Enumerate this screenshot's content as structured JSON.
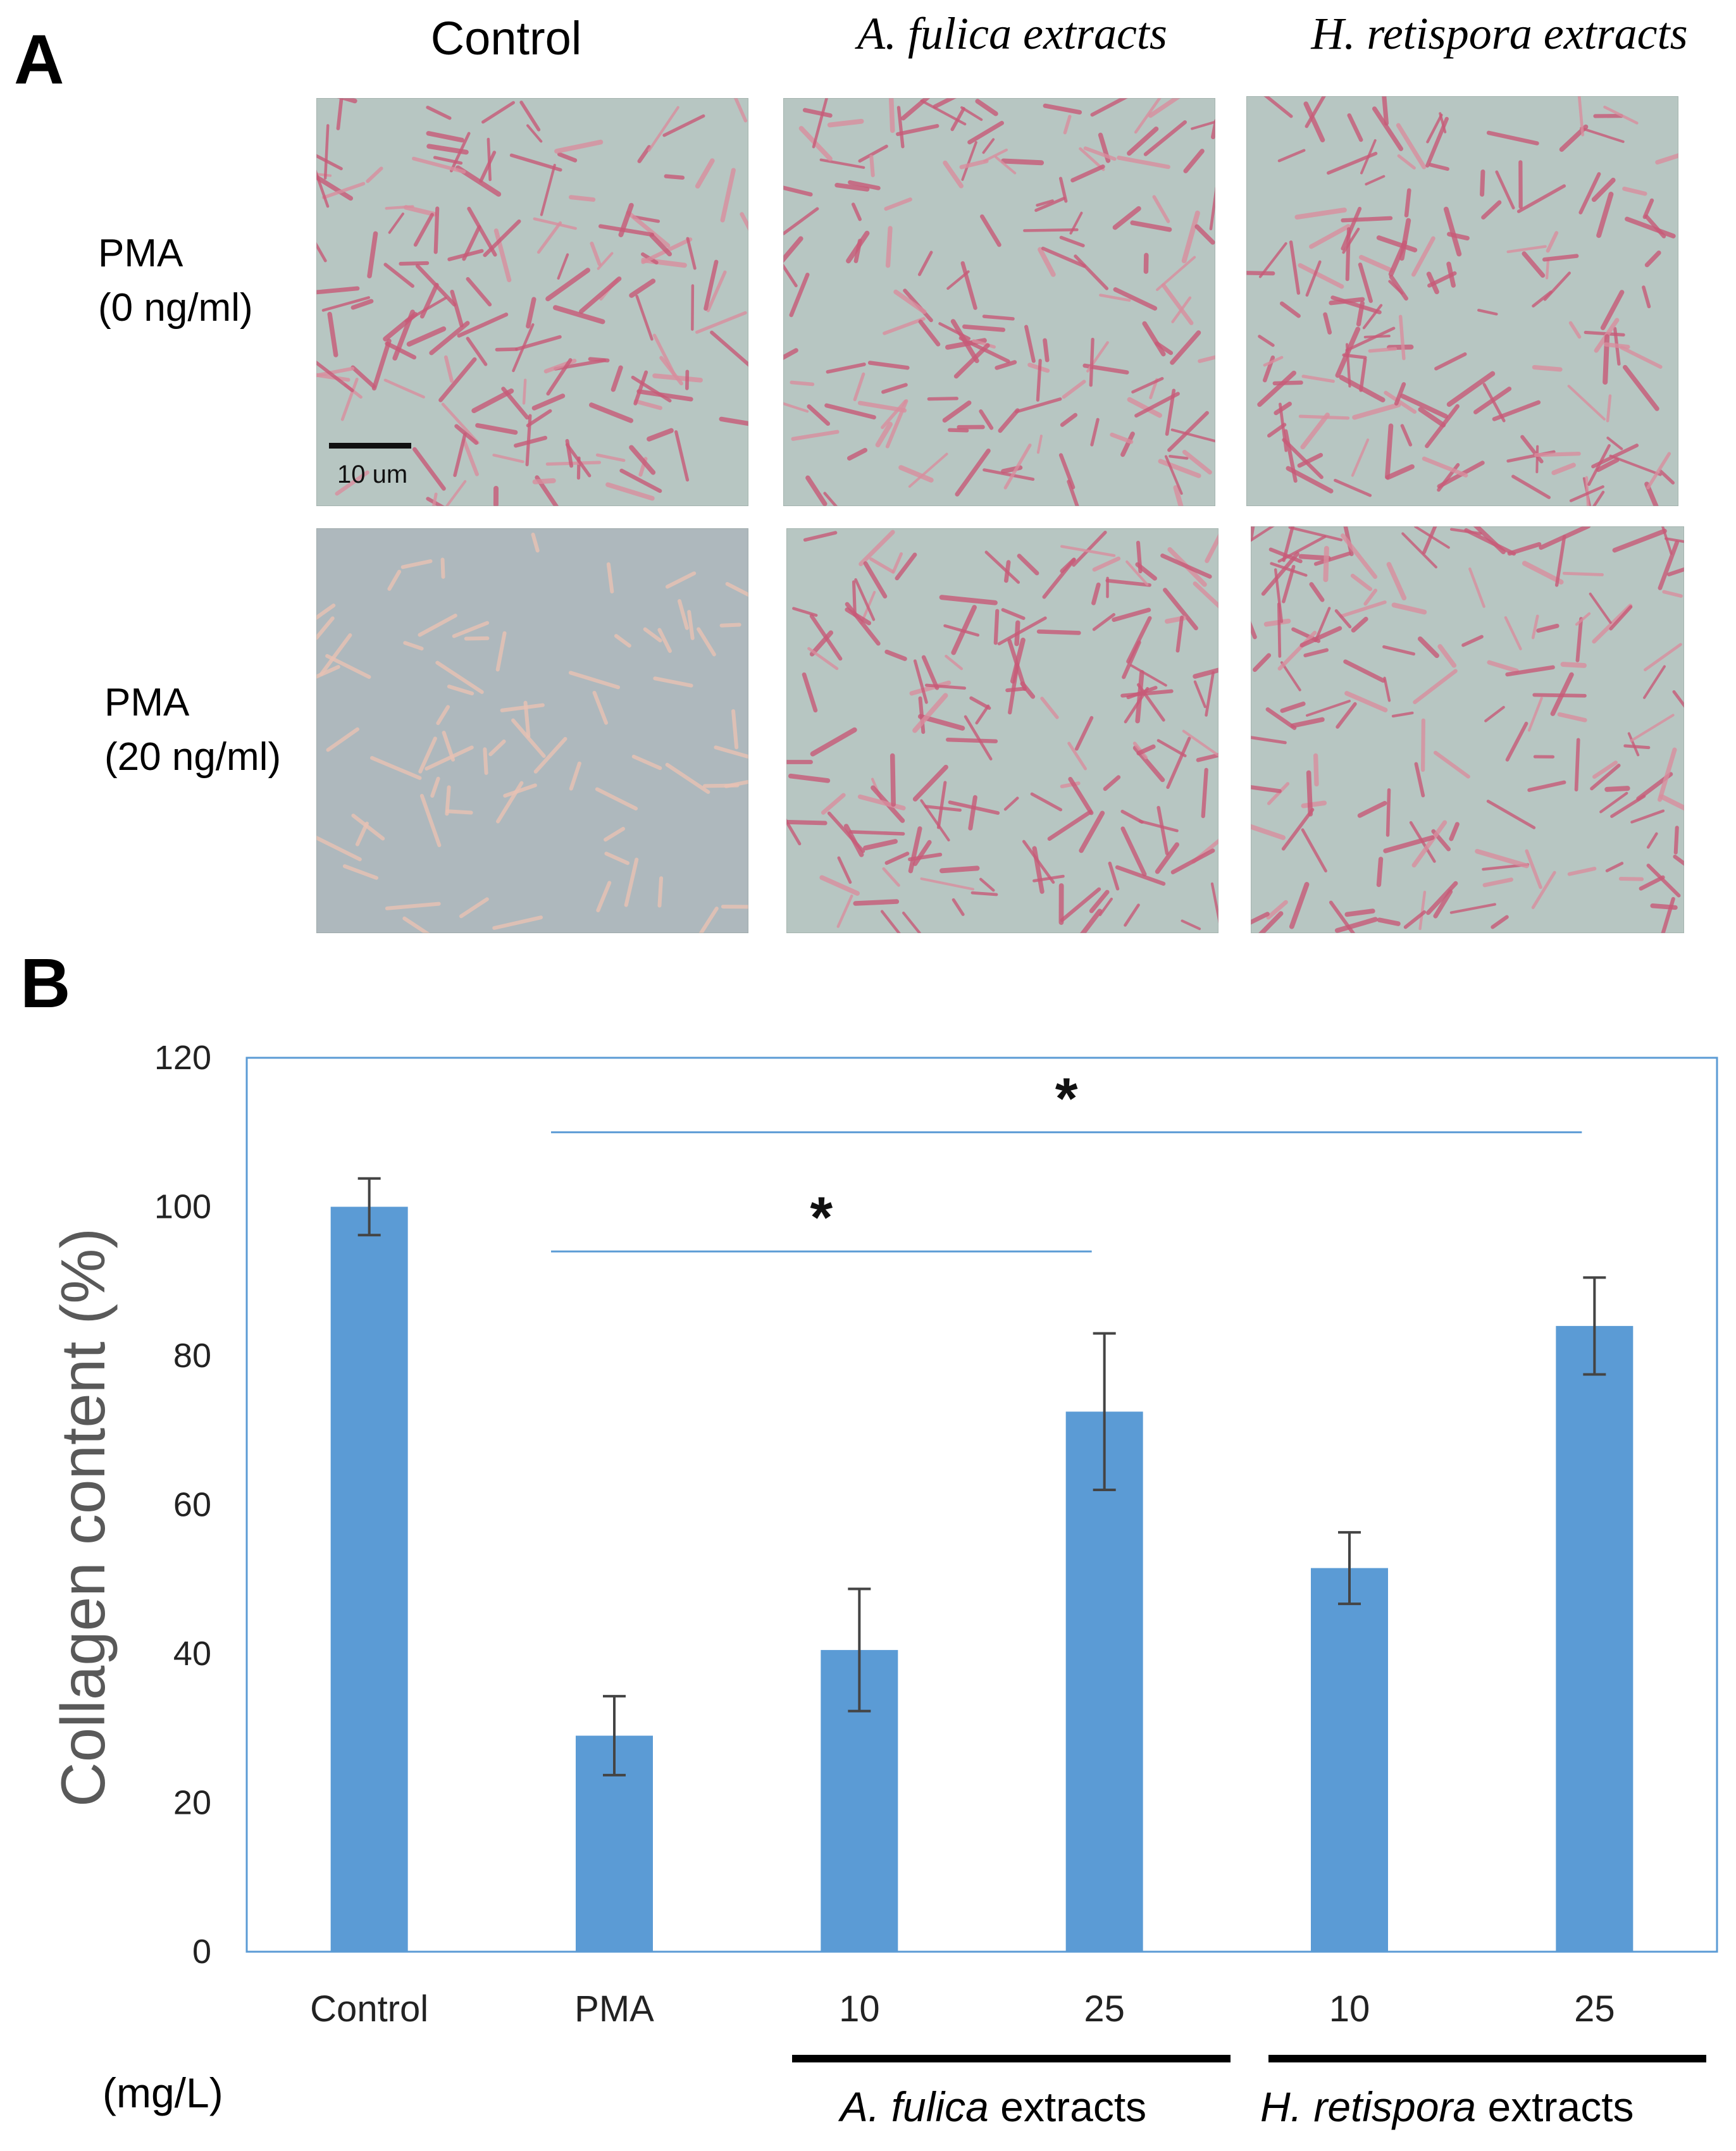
{
  "panel_a": {
    "letter": "A",
    "columns": [
      "Control",
      "A. fulica extracts",
      "H. retispora extracts"
    ],
    "rows": [
      {
        "line1": "PMA",
        "line2": "(0 ng/ml)"
      },
      {
        "line1": "PMA",
        "line2": "(20 ng/ml)"
      }
    ],
    "scale_bar_label": "10 um",
    "colors": {
      "background": "#b7c6c2",
      "cell_stain": "#c85a78",
      "cell_pale": "#e9c2b4"
    }
  },
  "panel_b": {
    "letter": "B",
    "unit_label": "(mg/L)",
    "group_labels": [
      {
        "italic": "A. fulica",
        "rest": " extracts"
      },
      {
        "italic": "H. retispora",
        "rest": " extracts"
      }
    ]
  },
  "chart_data": {
    "type": "bar",
    "categories": [
      "Control",
      "PMA",
      "10",
      "25",
      "10",
      "25"
    ],
    "values": [
      100,
      29,
      40.5,
      72.5,
      51.5,
      84
    ],
    "error": [
      3.8,
      5.3,
      8.2,
      10.5,
      4.8,
      6.5
    ],
    "ylabel": "Collagen content (%)",
    "ylim": [
      0,
      120
    ],
    "yticks": [
      0,
      20,
      40,
      60,
      80,
      100,
      120
    ],
    "grid": false,
    "bar_color": "#5b9bd5",
    "frame_color": "#5b9bd5",
    "significance": [
      {
        "from": 1,
        "to": 3,
        "y": 94,
        "label": "*"
      },
      {
        "from": 1,
        "to": 5,
        "y": 110,
        "label": "*"
      }
    ]
  }
}
